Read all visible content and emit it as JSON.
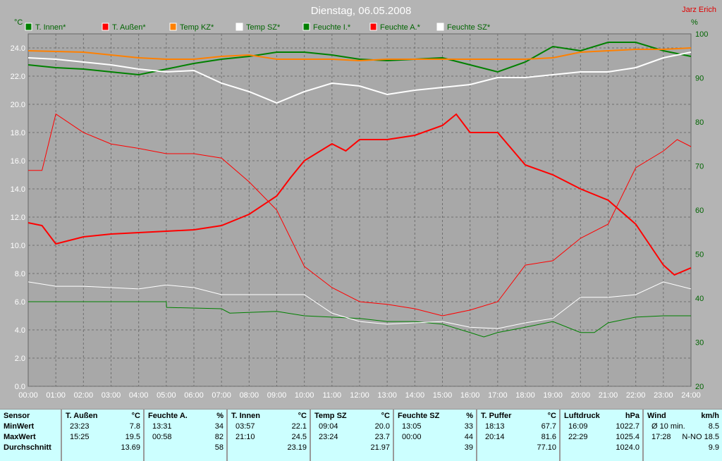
{
  "chart_data": {
    "type": "line",
    "title": "Dienstag, 06.05.2008",
    "author": "Jarz Erich",
    "ylabel_left": "°C",
    "ylabel_right": "%",
    "ylim_left": [
      0,
      25
    ],
    "ylim_right": [
      20,
      100
    ],
    "xlim": [
      0,
      24
    ],
    "x_ticks": [
      "00:00",
      "01:00",
      "02:00",
      "03:00",
      "04:00",
      "05:00",
      "06:00",
      "07:00",
      "08:00",
      "09:00",
      "10:00",
      "11:00",
      "12:00",
      "13:00",
      "14:00",
      "15:00",
      "16:00",
      "17:00",
      "18:00",
      "19:00",
      "20:00",
      "21:00",
      "22:00",
      "23:00",
      "24:00"
    ],
    "y_ticks_left": [
      "0.0",
      "2.0",
      "4.0",
      "6.0",
      "8.0",
      "10.0",
      "12.0",
      "14.0",
      "16.0",
      "18.0",
      "20.0",
      "22.0",
      "24.0"
    ],
    "y_ticks_right": [
      "20",
      "30",
      "40",
      "50",
      "60",
      "70",
      "80",
      "90",
      "100"
    ],
    "grid": true,
    "legend": "top",
    "series": [
      {
        "name": "T. Innen*",
        "color": "#008000",
        "axis": "left",
        "width": 2,
        "x": [
          0,
          1,
          2,
          3,
          4,
          5,
          6,
          7,
          8,
          9,
          10,
          11,
          12,
          13,
          14,
          15,
          16,
          17,
          18,
          19,
          20,
          21,
          22,
          23,
          24
        ],
        "y": [
          22.8,
          22.6,
          22.5,
          22.3,
          22.1,
          22.5,
          22.9,
          23.2,
          23.4,
          23.7,
          23.7,
          23.5,
          23.2,
          23.1,
          23.2,
          23.3,
          22.8,
          22.3,
          23.0,
          24.1,
          23.8,
          24.4,
          24.4,
          23.8,
          23.4
        ]
      },
      {
        "name": "T. Außen*",
        "color": "#ff0000",
        "axis": "left",
        "width": 2,
        "x": [
          0,
          0.5,
          1,
          2,
          3,
          4,
          5,
          6,
          7,
          8,
          9,
          9.5,
          10,
          11,
          11.5,
          12,
          13,
          14,
          15,
          15.5,
          16,
          17,
          18,
          19,
          20,
          21,
          22,
          23,
          23.4,
          24
        ],
        "y": [
          11.6,
          11.4,
          10.1,
          10.6,
          10.8,
          10.9,
          11.0,
          11.1,
          11.4,
          12.2,
          13.5,
          14.8,
          16.0,
          17.2,
          16.7,
          17.5,
          17.5,
          17.8,
          18.5,
          19.3,
          18.0,
          18.0,
          15.7,
          15.0,
          14.0,
          13.2,
          11.5,
          8.6,
          7.9,
          8.4
        ]
      },
      {
        "name": "Temp KZ*",
        "color": "#ff8000",
        "axis": "left",
        "width": 2,
        "x": [
          0,
          2,
          4,
          5,
          6,
          7,
          8,
          9,
          10,
          11,
          12,
          13,
          14,
          16,
          18,
          19,
          20,
          21,
          22,
          23,
          24
        ],
        "y": [
          23.8,
          23.7,
          23.3,
          23.2,
          23.2,
          23.4,
          23.5,
          23.2,
          23.2,
          23.2,
          23.1,
          23.2,
          23.2,
          23.2,
          23.2,
          23.3,
          23.7,
          23.8,
          23.9,
          23.9,
          24.0
        ]
      },
      {
        "name": "Temp SZ*",
        "color": "#ffffff",
        "axis": "left",
        "width": 2,
        "x": [
          0,
          1,
          2,
          3,
          4,
          5,
          6,
          7,
          8,
          9,
          10,
          11,
          12,
          13,
          14,
          15,
          16,
          17,
          18,
          19,
          20,
          21,
          22,
          23,
          24
        ],
        "y": [
          23.3,
          23.2,
          23.0,
          22.8,
          22.5,
          22.3,
          22.4,
          21.5,
          20.9,
          20.1,
          20.9,
          21.5,
          21.3,
          20.7,
          21.0,
          21.2,
          21.4,
          21.9,
          21.9,
          22.1,
          22.3,
          22.3,
          22.6,
          23.3,
          23.7
        ]
      },
      {
        "name": "Feuchte I.*",
        "color": "#008000",
        "axis": "right",
        "width": 1,
        "x": [
          0,
          5,
          5.01,
          7,
          7.3,
          9,
          10,
          12,
          13,
          14,
          15,
          16,
          16.5,
          17,
          18,
          19,
          20,
          20.5,
          21,
          22,
          23,
          24
        ],
        "y": [
          39.2,
          39.2,
          37.9,
          37.6,
          36.6,
          37,
          36,
          35.4,
          34.7,
          34.7,
          34.1,
          32.2,
          31.2,
          32.2,
          33.4,
          34.7,
          32.2,
          32.2,
          34.4,
          35.7,
          36,
          36
        ]
      },
      {
        "name": "Feuchte A.*",
        "color": "#ff0000",
        "axis": "right",
        "width": 1,
        "x": [
          0,
          0.5,
          1,
          2,
          3,
          4,
          5,
          6,
          7,
          8,
          9,
          10,
          11,
          12,
          13,
          14,
          15,
          16,
          17,
          18,
          19,
          20,
          21,
          22,
          23,
          23.5,
          24
        ],
        "y": [
          69,
          69,
          81.8,
          77.6,
          75,
          74,
          72.8,
          72.8,
          71.8,
          66.4,
          60,
          47.2,
          42.4,
          39.2,
          38.6,
          37.6,
          36,
          37.3,
          39.2,
          47.5,
          48.5,
          53.6,
          56.8,
          69.6,
          73.4,
          76,
          74.4
        ]
      },
      {
        "name": "Feuchte SZ*",
        "color": "#ffffff",
        "axis": "right",
        "width": 1,
        "x": [
          0,
          1,
          2,
          3,
          4,
          5,
          6,
          7,
          8,
          9,
          10,
          11,
          12,
          13,
          14,
          15,
          16,
          17,
          18,
          19,
          20,
          21,
          22,
          23,
          24
        ],
        "y": [
          43.7,
          42.7,
          42.7,
          42.4,
          42.1,
          43,
          42.4,
          40.8,
          40.8,
          40.8,
          40.8,
          36.6,
          34.7,
          34.1,
          34.4,
          34.7,
          33.4,
          33.1,
          34.4,
          35.4,
          40.2,
          40.2,
          40.8,
          43.7,
          42.1
        ]
      }
    ]
  },
  "table": {
    "columns": [
      {
        "name": "Sensor",
        "unit": "",
        "rows": [
          [
            "MinWert",
            ""
          ],
          [
            "MaxWert",
            ""
          ],
          [
            "Durchschnitt",
            ""
          ]
        ]
      },
      {
        "name": "T. Außen",
        "unit": "°C",
        "rows": [
          [
            "23:23",
            "7.8"
          ],
          [
            "15:25",
            "19.5"
          ],
          [
            "",
            "13.69"
          ]
        ]
      },
      {
        "name": "Feuchte A.",
        "unit": "%",
        "rows": [
          [
            "13:31",
            "34"
          ],
          [
            "00:58",
            "82"
          ],
          [
            "",
            "58"
          ]
        ]
      },
      {
        "name": "T. Innen",
        "unit": "°C",
        "rows": [
          [
            "03:57",
            "22.1"
          ],
          [
            "21:10",
            "24.5"
          ],
          [
            "",
            "23.19"
          ]
        ]
      },
      {
        "name": "Temp SZ",
        "unit": "°C",
        "rows": [
          [
            "09:04",
            "20.0"
          ],
          [
            "23:24",
            "23.7"
          ],
          [
            "",
            "21.97"
          ]
        ]
      },
      {
        "name": "Feuchte SZ",
        "unit": "%",
        "rows": [
          [
            "13:05",
            "33"
          ],
          [
            "00:00",
            "44"
          ],
          [
            "",
            "39"
          ]
        ]
      },
      {
        "name": "T. Puffer",
        "unit": "°C",
        "rows": [
          [
            "18:13",
            "67.7"
          ],
          [
            "20:14",
            "81.6"
          ],
          [
            "",
            "77.10"
          ]
        ]
      },
      {
        "name": "Luftdruck",
        "unit": "hPa",
        "rows": [
          [
            "16:09",
            "1022.7"
          ],
          [
            "22:29",
            "1025.4"
          ],
          [
            "",
            "1024.0"
          ]
        ]
      },
      {
        "name": "Wind",
        "unit": "km/h",
        "rows": [
          [
            "Ø 10 min.",
            "8.5"
          ],
          [
            "17:28",
            "N-NO 18.5"
          ],
          [
            "",
            "9.9"
          ]
        ]
      }
    ]
  }
}
